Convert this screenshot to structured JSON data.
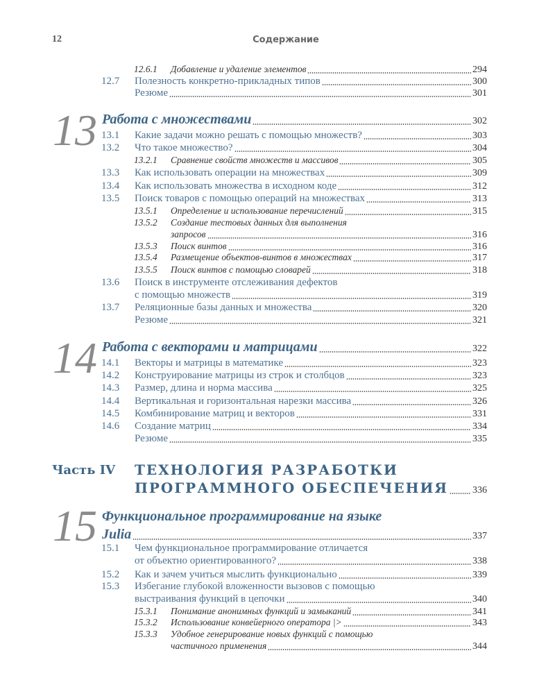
{
  "header": {
    "page_number": "12",
    "title": "Содержание"
  },
  "chapter_numbers": [
    "13",
    "14",
    "15"
  ],
  "part": {
    "label": "Часть IV"
  },
  "entries": [
    {
      "kind": "sub",
      "num": "12.6.1",
      "lines": [
        "Добавление и удаление элементов"
      ],
      "page": "294"
    },
    {
      "kind": "section",
      "num": "12.7",
      "lines": [
        "Полезность конкретно-прикладных типов"
      ],
      "page": "300"
    },
    {
      "kind": "summary",
      "num": "",
      "lines": [
        "Резюме"
      ],
      "page": "301"
    },
    {
      "kind": "chapter",
      "num": "",
      "lines": [
        "Работа с множествами"
      ],
      "page": "302"
    },
    {
      "kind": "section",
      "num": "13.1",
      "lines": [
        "Какие задачи можно решать с помощью множеств?"
      ],
      "page": "303"
    },
    {
      "kind": "section",
      "num": "13.2",
      "lines": [
        "Что такое множество?"
      ],
      "page": "304"
    },
    {
      "kind": "sub",
      "num": "13.2.1",
      "lines": [
        "Сравнение свойств множеств и массивов"
      ],
      "page": "305"
    },
    {
      "kind": "section",
      "num": "13.3",
      "lines": [
        "Как использовать операции на множествах"
      ],
      "page": "309"
    },
    {
      "kind": "section",
      "num": "13.4",
      "lines": [
        "Как использовать множества в исходном коде"
      ],
      "page": "312"
    },
    {
      "kind": "section",
      "num": "13.5",
      "lines": [
        "Поиск товаров с помощью операций на множествах"
      ],
      "page": "313"
    },
    {
      "kind": "sub",
      "num": "13.5.1",
      "lines": [
        "Определение и использование перечислений"
      ],
      "page": "315"
    },
    {
      "kind": "sub",
      "num": "13.5.2",
      "lines": [
        "Создание тестовых данных для выполнения",
        "запросов"
      ],
      "page": "316"
    },
    {
      "kind": "sub",
      "num": "13.5.3",
      "lines": [
        "Поиск винтов"
      ],
      "page": "316"
    },
    {
      "kind": "sub",
      "num": "13.5.4",
      "lines": [
        "Размещение объектов-винтов в множествах"
      ],
      "page": "317"
    },
    {
      "kind": "sub",
      "num": "13.5.5",
      "lines": [
        "Поиск винтов с помощью словарей"
      ],
      "page": "318"
    },
    {
      "kind": "section",
      "num": "13.6",
      "lines": [
        "Поиск в инструменте отслеживания дефектов",
        "с помощью множеств"
      ],
      "page": "319"
    },
    {
      "kind": "section",
      "num": "13.7",
      "lines": [
        "Реляционные базы данных и множества"
      ],
      "page": "320"
    },
    {
      "kind": "summary",
      "num": "",
      "lines": [
        "Резюме"
      ],
      "page": "321"
    },
    {
      "kind": "chapter",
      "num": "",
      "lines": [
        "Работа с векторами и матрицами"
      ],
      "page": "322"
    },
    {
      "kind": "section",
      "num": "14.1",
      "lines": [
        "Векторы и матрицы в математике"
      ],
      "page": "323"
    },
    {
      "kind": "section",
      "num": "14.2",
      "lines": [
        "Конструирование матрицы из строк и столбцов"
      ],
      "page": "323"
    },
    {
      "kind": "section",
      "num": "14.3",
      "lines": [
        "Размер, длина и норма массива"
      ],
      "page": "325"
    },
    {
      "kind": "section",
      "num": "14.4",
      "lines": [
        "Вертикальная и горизонтальная нарезки массива"
      ],
      "page": "326"
    },
    {
      "kind": "section",
      "num": "14.5",
      "lines": [
        "Комбинирование матриц и векторов"
      ],
      "page": "331"
    },
    {
      "kind": "section",
      "num": "14.6",
      "lines": [
        "Создание матриц"
      ],
      "page": "334"
    },
    {
      "kind": "summary",
      "num": "",
      "lines": [
        "Резюме"
      ],
      "page": "335"
    },
    {
      "kind": "part",
      "num": "",
      "lines": [
        "ТЕХНОЛОГИЯ РАЗРАБОТКИ",
        "ПРОГРАММНОГО ОБЕСПЕЧЕНИЯ"
      ],
      "page": "336"
    },
    {
      "kind": "chapter",
      "num": "",
      "lines": [
        "Функциональное программирование на языке",
        "Julia"
      ],
      "page": "337"
    },
    {
      "kind": "section",
      "num": "15.1",
      "lines": [
        "Чем функциональное программирование отличается",
        "от объектно ориентированного?"
      ],
      "page": "338"
    },
    {
      "kind": "section",
      "num": "15.2",
      "lines": [
        "Как и зачем учиться мыслить функционально"
      ],
      "page": "339"
    },
    {
      "kind": "section",
      "num": "15.3",
      "lines": [
        "Избегание глубокой вложенности вызовов с помощью",
        "выстраивания функций в цепочки"
      ],
      "page": "340"
    },
    {
      "kind": "sub",
      "num": "15.3.1",
      "lines": [
        "Понимание анонимных функций и замыканий"
      ],
      "page": "341"
    },
    {
      "kind": "sub",
      "num": "15.3.2",
      "lines": [
        "Использование конвейерного оператора |>"
      ],
      "page": "343"
    },
    {
      "kind": "sub",
      "num": "15.3.3",
      "lines": [
        "Удобное генерирование новых функций с помощью",
        "частичного применения"
      ],
      "page": "344"
    }
  ]
}
